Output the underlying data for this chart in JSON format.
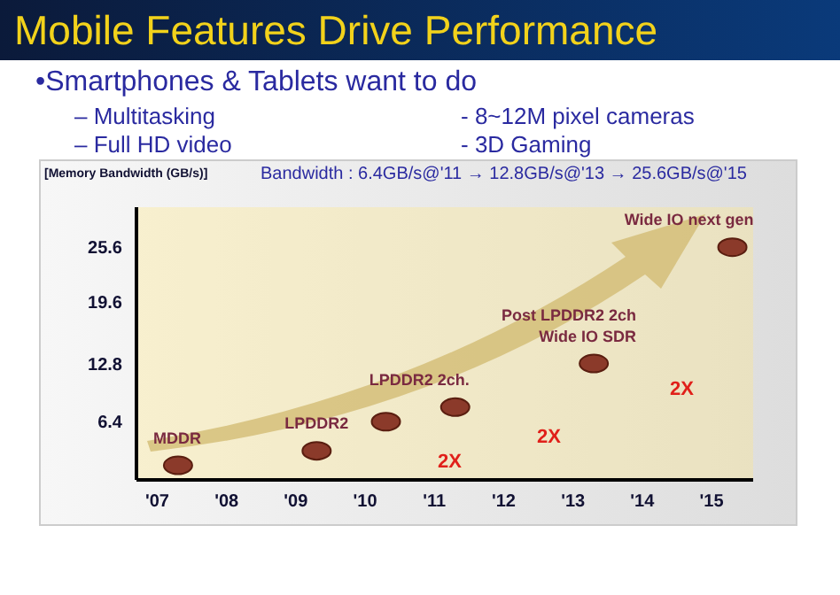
{
  "chart_data": {
    "type": "scatter",
    "title": "Mobile Features Drive Performance",
    "subtitle": "•Smartphones & Tablets want to do",
    "ylabel": "[Memory Bandwidth (GB/s)]",
    "annotations": [
      "– Multitasking",
      "- 8~12M pixel cameras",
      "– Full HD video",
      "- 3D Gaming",
      "Bandwidth : 6.4GB/s@'11 → 12.8GB/s@'13 → 25.6GB/s@'15",
      "2X",
      "2X",
      "2X"
    ],
    "x": [
      2007.3,
      2009.3,
      2010.3,
      2011.3,
      2013.3,
      2015.3
    ],
    "values": [
      1.6,
      3.2,
      6.4,
      8,
      12.8,
      25.6
    ],
    "value_labels": [
      "MDDR",
      "LPDDR2",
      null,
      "LPDDR2 2ch.",
      "Post LPDDR2 2ch\nWide IO SDR",
      "Wide IO next gen"
    ],
    "color": "#8b3a2a",
    "marker": "circle",
    "xlim": [
      2006.7,
      2015.6
    ],
    "xticks": [
      {
        "value": 2007,
        "label": "'07"
      },
      {
        "value": 2008,
        "label": "'08"
      },
      {
        "value": 2009,
        "label": "'09"
      },
      {
        "value": 2010,
        "label": "'10"
      },
      {
        "value": 2011,
        "label": "'11"
      },
      {
        "value": 2012,
        "label": "'12"
      },
      {
        "value": 2013,
        "label": "'13"
      },
      {
        "value": 2014,
        "label": "'14"
      },
      {
        "value": 2015,
        "label": "'15"
      }
    ],
    "ylim": [
      0,
      30
    ],
    "yticks": [
      6.4,
      12.8,
      19.6,
      25.6
    ],
    "grid": false,
    "legend": false
  }
}
